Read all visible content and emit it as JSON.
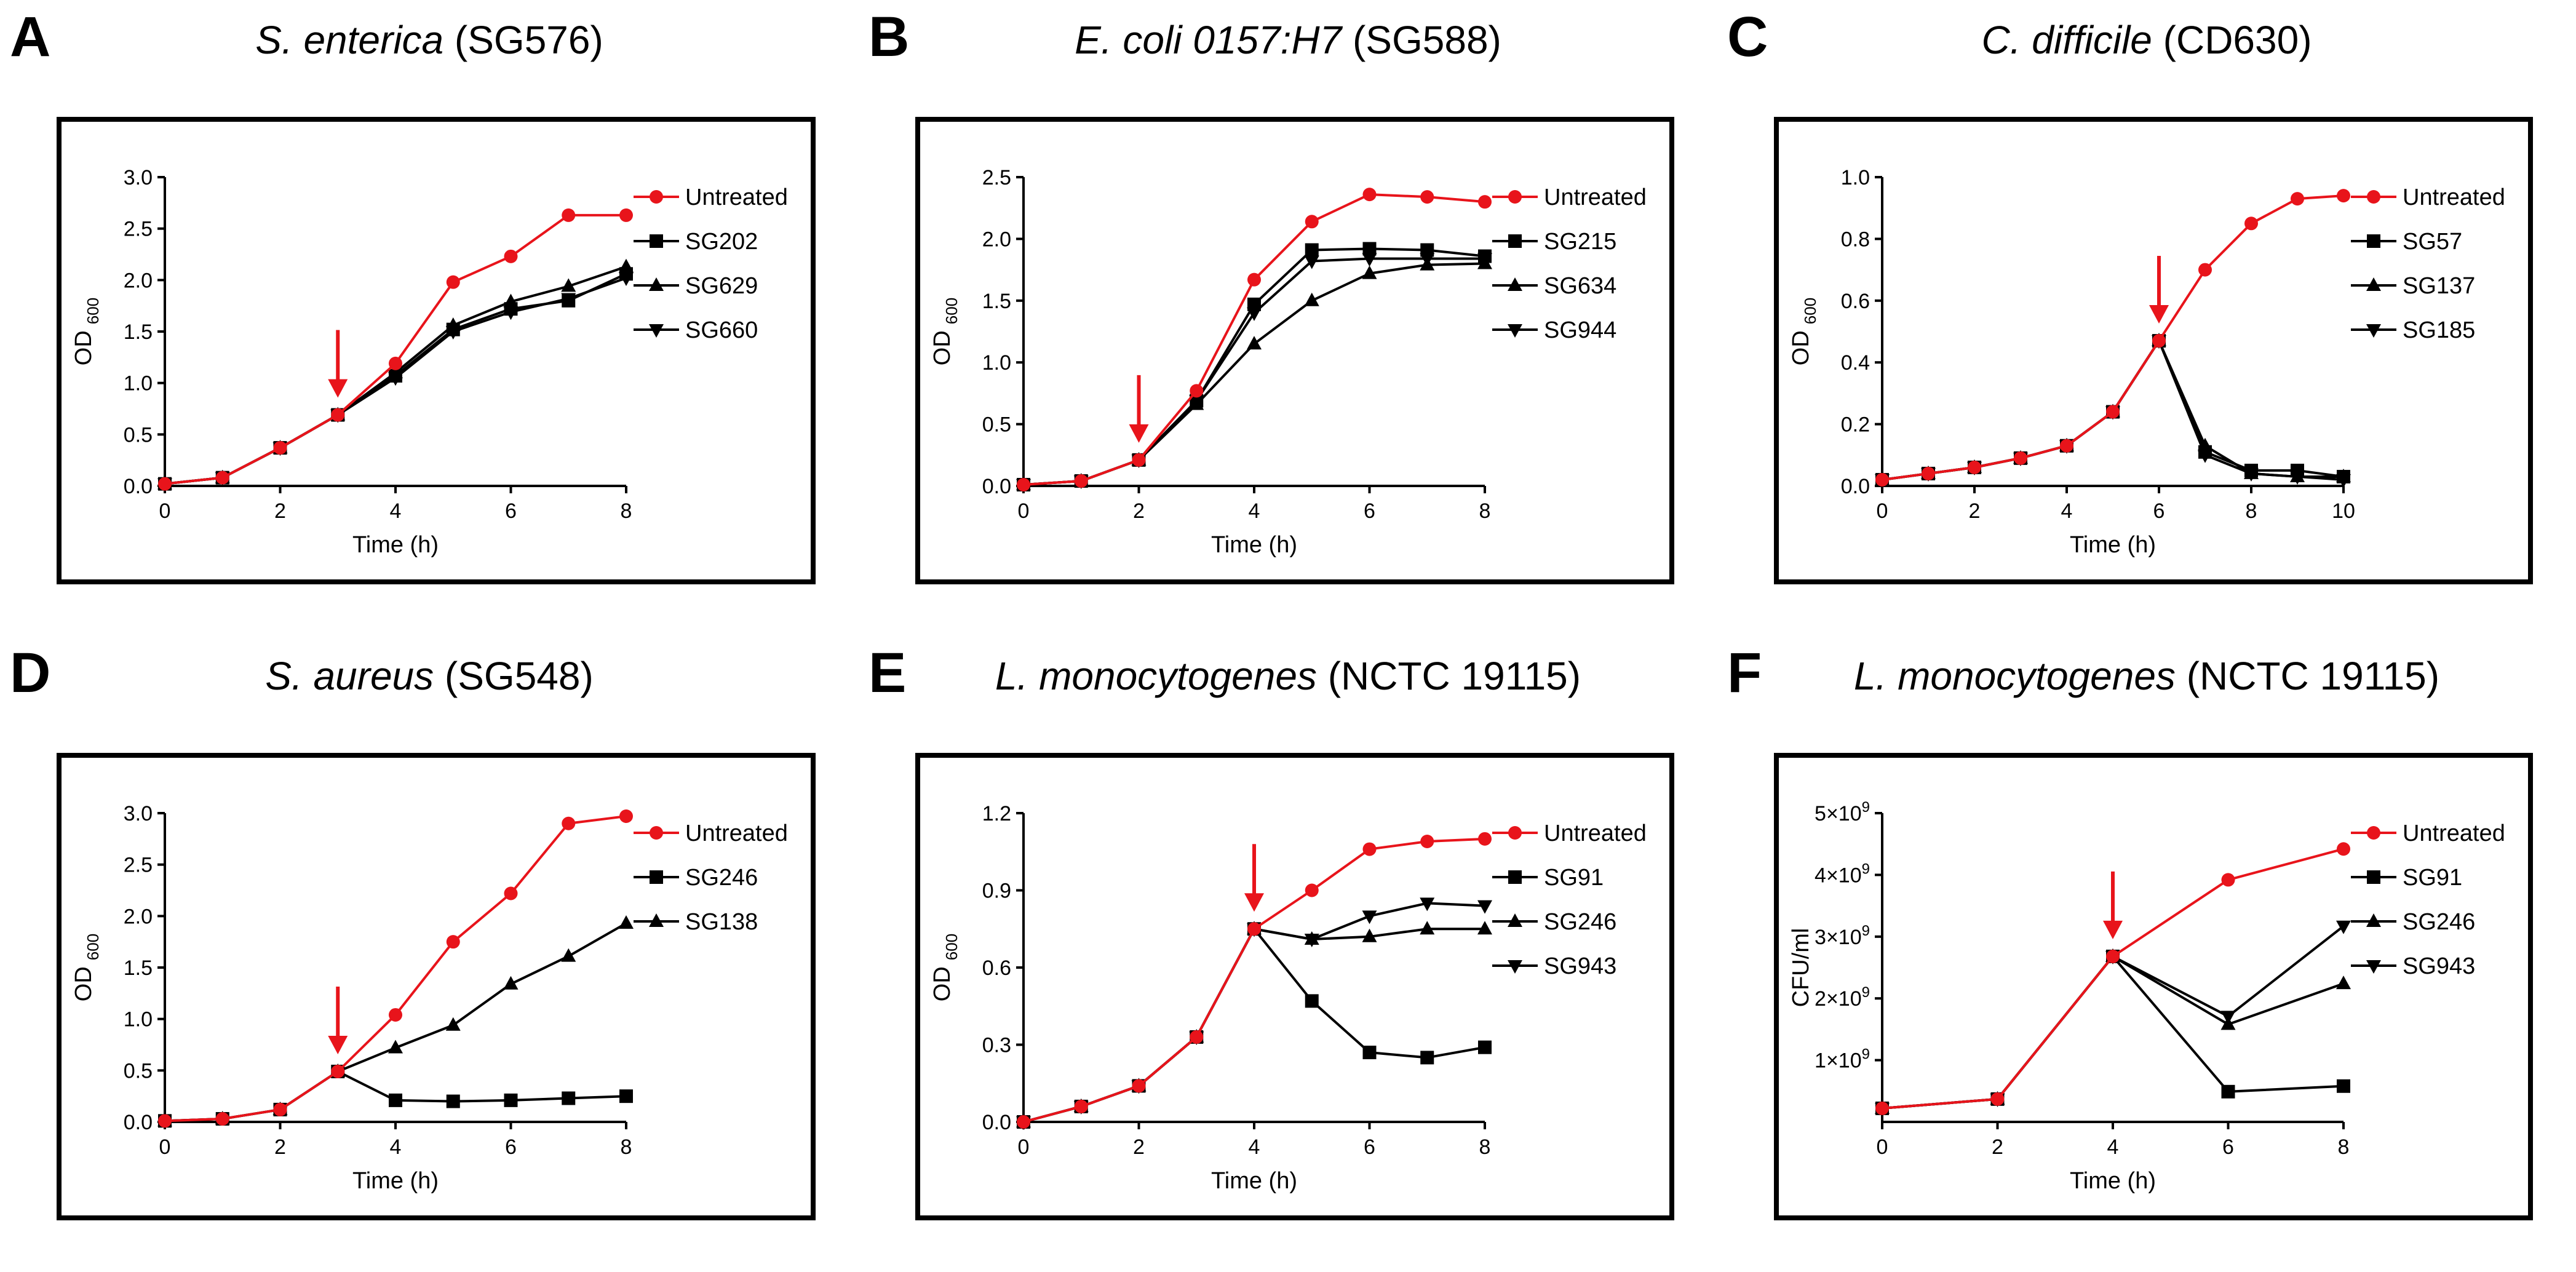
{
  "chart_data": [
    {
      "id": "A",
      "type": "line",
      "letter": "A",
      "title_species": "S. enterica",
      "title_strain": "(SG576)",
      "xlabel": "Time (h)",
      "ylabel": "OD",
      "ylabel_sub": "600",
      "xlim": [
        0,
        8
      ],
      "ylim": [
        0,
        3.0
      ],
      "xticks": [
        0,
        2,
        4,
        6,
        8
      ],
      "yticks": [
        0,
        0.5,
        1.0,
        1.5,
        2.0,
        2.5,
        3.0
      ],
      "ytick_labels": [
        "0.0",
        "0.5",
        "1.0",
        "1.5",
        "2.0",
        "2.5",
        "3.0"
      ],
      "arrow_x": 3,
      "series": [
        {
          "name": "Untreated",
          "marker": "circle",
          "color": "#e8141b",
          "x": [
            0,
            1,
            2,
            3,
            4,
            5,
            6,
            7,
            8
          ],
          "values": [
            0.02,
            0.08,
            0.37,
            0.69,
            1.19,
            1.98,
            2.23,
            2.63,
            2.63
          ]
        },
        {
          "name": "SG202",
          "marker": "square",
          "color": "#000000",
          "x": [
            0,
            1,
            2,
            3,
            4,
            5,
            6,
            7,
            8
          ],
          "values": [
            0.02,
            0.08,
            0.37,
            0.69,
            1.07,
            1.52,
            1.72,
            1.8,
            2.06
          ]
        },
        {
          "name": "SG629",
          "marker": "triangle-up",
          "color": "#000000",
          "x": [
            0,
            1,
            2,
            3,
            4,
            5,
            6,
            7,
            8
          ],
          "values": [
            0.02,
            0.08,
            0.37,
            0.69,
            1.1,
            1.56,
            1.79,
            1.94,
            2.13
          ]
        },
        {
          "name": "SG660",
          "marker": "triangle-down",
          "color": "#000000",
          "x": [
            0,
            1,
            2,
            3,
            4,
            5,
            6,
            7,
            8
          ],
          "values": [
            0.02,
            0.08,
            0.37,
            0.69,
            1.05,
            1.5,
            1.69,
            1.82,
            2.02
          ]
        }
      ]
    },
    {
      "id": "B",
      "type": "line",
      "letter": "B",
      "title_species": "E. coli 0157:H7",
      "title_strain": "(SG588)",
      "xlabel": "Time (h)",
      "ylabel": "OD",
      "ylabel_sub": "600",
      "xlim": [
        0,
        8
      ],
      "ylim": [
        0,
        2.5
      ],
      "xticks": [
        0,
        2,
        4,
        6,
        8
      ],
      "yticks": [
        0,
        0.5,
        1.0,
        1.5,
        2.0,
        2.5
      ],
      "ytick_labels": [
        "0.0",
        "0.5",
        "1.0",
        "1.5",
        "2.0",
        "2.5"
      ],
      "arrow_x": 2,
      "series": [
        {
          "name": "Untreated",
          "marker": "circle",
          "color": "#e8141b",
          "x": [
            0,
            1,
            2,
            3,
            4,
            5,
            6,
            7,
            8
          ],
          "values": [
            0.01,
            0.04,
            0.21,
            0.77,
            1.67,
            2.14,
            2.36,
            2.34,
            2.3
          ]
        },
        {
          "name": "SG215",
          "marker": "square",
          "color": "#000000",
          "x": [
            0,
            1,
            2,
            3,
            4,
            5,
            6,
            7,
            8
          ],
          "values": [
            0.01,
            0.04,
            0.21,
            0.69,
            1.47,
            1.91,
            1.92,
            1.91,
            1.86
          ]
        },
        {
          "name": "SG634",
          "marker": "triangle-up",
          "color": "#000000",
          "x": [
            0,
            1,
            2,
            3,
            4,
            5,
            6,
            7,
            8
          ],
          "values": [
            0.01,
            0.04,
            0.21,
            0.66,
            1.15,
            1.5,
            1.72,
            1.79,
            1.8
          ]
        },
        {
          "name": "SG944",
          "marker": "triangle-down",
          "color": "#000000",
          "x": [
            0,
            1,
            2,
            3,
            4,
            5,
            6,
            7,
            8
          ],
          "values": [
            0.01,
            0.04,
            0.21,
            0.69,
            1.4,
            1.82,
            1.84,
            1.84,
            1.84
          ]
        }
      ]
    },
    {
      "id": "C",
      "type": "line",
      "letter": "C",
      "title_species": "C. difficile",
      "title_strain": "(CD630)",
      "xlabel": "Time (h)",
      "ylabel": "OD",
      "ylabel_sub": "600",
      "xlim": [
        0,
        10
      ],
      "ylim": [
        0,
        1.0
      ],
      "xticks": [
        0,
        2,
        4,
        6,
        8,
        10
      ],
      "yticks": [
        0,
        0.2,
        0.4,
        0.6,
        0.8,
        1.0
      ],
      "ytick_labels": [
        "0.0",
        "0.2",
        "0.4",
        "0.6",
        "0.8",
        "1.0"
      ],
      "arrow_x": 6,
      "series": [
        {
          "name": "Untreated",
          "marker": "circle",
          "color": "#e8141b",
          "x": [
            0,
            1,
            2,
            3,
            4,
            5,
            6,
            7,
            8,
            9,
            10
          ],
          "values": [
            0.02,
            0.04,
            0.06,
            0.09,
            0.13,
            0.24,
            0.47,
            0.7,
            0.85,
            0.93,
            0.94
          ]
        },
        {
          "name": "SG57",
          "marker": "square",
          "color": "#000000",
          "x": [
            0,
            1,
            2,
            3,
            4,
            5,
            6,
            7,
            8,
            9,
            10
          ],
          "values": [
            0.02,
            0.04,
            0.06,
            0.09,
            0.13,
            0.24,
            0.47,
            0.11,
            0.05,
            0.05,
            0.03
          ]
        },
        {
          "name": "SG137",
          "marker": "triangle-up",
          "color": "#000000",
          "x": [
            0,
            1,
            2,
            3,
            4,
            5,
            6,
            7,
            8,
            9,
            10
          ],
          "values": [
            0.02,
            0.04,
            0.06,
            0.09,
            0.13,
            0.24,
            0.47,
            0.13,
            0.04,
            0.03,
            0.03
          ]
        },
        {
          "name": "SG185",
          "marker": "triangle-down",
          "color": "#000000",
          "x": [
            0,
            1,
            2,
            3,
            4,
            5,
            6,
            7,
            8,
            9,
            10
          ],
          "values": [
            0.02,
            0.04,
            0.06,
            0.09,
            0.13,
            0.24,
            0.47,
            0.1,
            0.04,
            0.03,
            0.02
          ]
        }
      ]
    },
    {
      "id": "D",
      "type": "line",
      "letter": "D",
      "title_species": "S. aureus",
      "title_strain": "(SG548)",
      "xlabel": "Time (h)",
      "ylabel": "OD",
      "ylabel_sub": "600",
      "xlim": [
        0,
        8
      ],
      "ylim": [
        0,
        3.0
      ],
      "xticks": [
        0,
        2,
        4,
        6,
        8
      ],
      "yticks": [
        0,
        0.5,
        1.0,
        1.5,
        2.0,
        2.5,
        3.0
      ],
      "ytick_labels": [
        "0.0",
        "0.5",
        "1.0",
        "1.5",
        "2.0",
        "2.5",
        "3.0"
      ],
      "arrow_x": 3,
      "series": [
        {
          "name": "Untreated",
          "marker": "circle",
          "color": "#e8141b",
          "x": [
            0,
            1,
            2,
            3,
            4,
            5,
            6,
            7,
            8
          ],
          "values": [
            0.01,
            0.03,
            0.12,
            0.49,
            1.04,
            1.75,
            2.22,
            2.9,
            2.97
          ]
        },
        {
          "name": "SG246",
          "marker": "square",
          "color": "#000000",
          "x": [
            0,
            1,
            2,
            3,
            4,
            5,
            6,
            7,
            8
          ],
          "values": [
            0.01,
            0.03,
            0.12,
            0.49,
            0.21,
            0.2,
            0.21,
            0.23,
            0.25
          ]
        },
        {
          "name": "SG138",
          "marker": "triangle-up",
          "color": "#000000",
          "x": [
            0,
            1,
            2,
            3,
            4,
            5,
            6,
            7,
            8
          ],
          "values": [
            0.01,
            0.03,
            0.12,
            0.49,
            0.72,
            0.94,
            1.34,
            1.61,
            1.93
          ]
        }
      ]
    },
    {
      "id": "E",
      "type": "line",
      "letter": "E",
      "title_species": "L. monocytogenes",
      "title_strain": "(NCTC 19115)",
      "xlabel": "Time (h)",
      "ylabel": "OD",
      "ylabel_sub": "600",
      "xlim": [
        0,
        8
      ],
      "ylim": [
        0,
        1.2
      ],
      "xticks": [
        0,
        2,
        4,
        6,
        8
      ],
      "yticks": [
        0,
        0.3,
        0.6,
        0.9,
        1.2
      ],
      "ytick_labels": [
        "0.0",
        "0.3",
        "0.6",
        "0.9",
        "1.2"
      ],
      "arrow_x": 4,
      "series": [
        {
          "name": "Untreated",
          "marker": "circle",
          "color": "#e8141b",
          "x": [
            0,
            1,
            2,
            3,
            4,
            5,
            6,
            7,
            8
          ],
          "values": [
            0.0,
            0.06,
            0.14,
            0.33,
            0.75,
            0.9,
            1.06,
            1.09,
            1.1
          ]
        },
        {
          "name": "SG91",
          "marker": "square",
          "color": "#000000",
          "x": [
            0,
            1,
            2,
            3,
            4,
            5,
            6,
            7,
            8
          ],
          "values": [
            0.0,
            0.06,
            0.14,
            0.33,
            0.75,
            0.47,
            0.27,
            0.25,
            0.29
          ]
        },
        {
          "name": "SG246",
          "marker": "triangle-up",
          "color": "#000000",
          "x": [
            0,
            1,
            2,
            3,
            4,
            5,
            6,
            7,
            8
          ],
          "values": [
            0.0,
            0.06,
            0.14,
            0.33,
            0.75,
            0.71,
            0.72,
            0.75,
            0.75
          ]
        },
        {
          "name": "SG943",
          "marker": "triangle-down",
          "color": "#000000",
          "x": [
            0,
            1,
            2,
            3,
            4,
            5,
            6,
            7,
            8
          ],
          "values": [
            0.0,
            0.06,
            0.14,
            0.33,
            0.75,
            0.71,
            0.8,
            0.85,
            0.84
          ]
        }
      ]
    },
    {
      "id": "F",
      "type": "line",
      "letter": "F",
      "title_species": "L. monocytogenes",
      "title_strain": "(NCTC 19115)",
      "xlabel": "Time (h)",
      "ylabel": "CFU/ml",
      "ylabel_sub": "",
      "xlim": [
        0,
        8
      ],
      "ylim": [
        0,
        5000000000
      ],
      "xticks": [
        0,
        2,
        4,
        6,
        8
      ],
      "yticks": [
        1000000000,
        2000000000,
        3000000000,
        4000000000,
        5000000000
      ],
      "ytick_labels": [
        "1×10",
        "2×10",
        "3×10",
        "4×10",
        "5×10"
      ],
      "ytick_exponent": "9",
      "arrow_x": 4,
      "series": [
        {
          "name": "Untreated",
          "marker": "circle",
          "color": "#e8141b",
          "x": [
            0,
            2,
            4,
            6,
            8
          ],
          "values": [
            220000000,
            370000000,
            2680000000,
            3920000000,
            4420000000
          ]
        },
        {
          "name": "SG91",
          "marker": "square",
          "color": "#000000",
          "x": [
            0,
            2,
            4,
            6,
            8
          ],
          "values": [
            220000000,
            370000000,
            2680000000,
            490000000,
            580000000
          ]
        },
        {
          "name": "SG246",
          "marker": "triangle-up",
          "color": "#000000",
          "x": [
            0,
            2,
            4,
            6,
            8
          ],
          "values": [
            220000000,
            370000000,
            2680000000,
            1580000000,
            2240000000
          ]
        },
        {
          "name": "SG943",
          "marker": "triangle-down",
          "color": "#000000",
          "x": [
            0,
            2,
            4,
            6,
            8
          ],
          "values": [
            220000000,
            370000000,
            2680000000,
            1710000000,
            3170000000
          ]
        }
      ]
    }
  ]
}
